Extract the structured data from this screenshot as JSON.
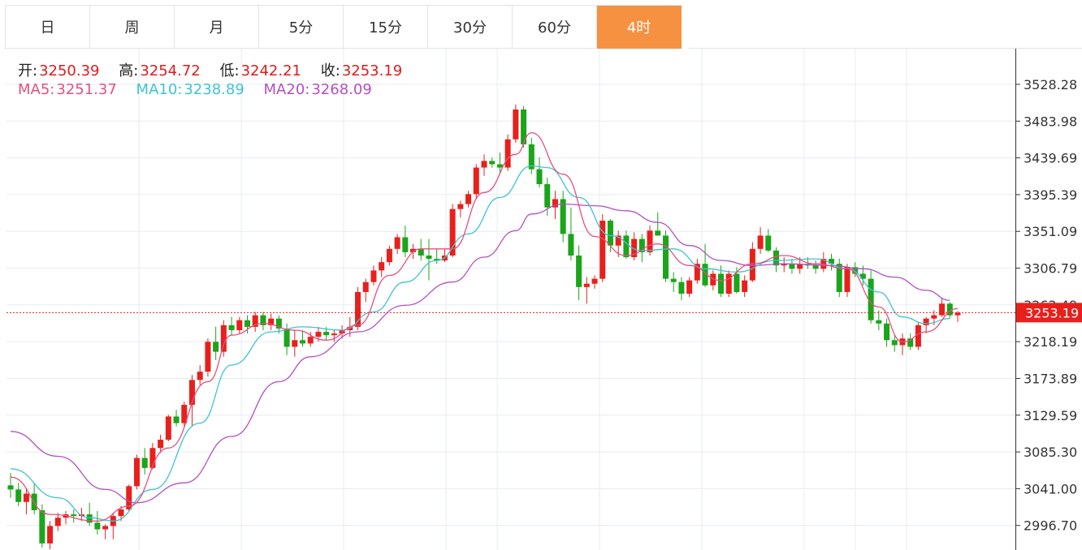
{
  "tabs": [
    {
      "label": "日"
    },
    {
      "label": "周"
    },
    {
      "label": "月"
    },
    {
      "label": "5分"
    },
    {
      "label": "15分"
    },
    {
      "label": "30分"
    },
    {
      "label": "60分"
    },
    {
      "label": "4时",
      "active": true
    }
  ],
  "ohlc_legend": {
    "open_label": "开:",
    "open": "3250.39",
    "high_label": "高:",
    "high": "3254.72",
    "low_label": "低:",
    "low": "3242.21",
    "close_label": "收:",
    "close": "3253.19"
  },
  "ma_legend": {
    "ma5_label": "MA5:",
    "ma5": "3251.37",
    "ma10_label": "MA10:",
    "ma10": "3238.89",
    "ma20_label": "MA20:",
    "ma20": "3268.09"
  },
  "colors": {
    "up": "#e8201c",
    "down": "#1aa51a",
    "ma5": "#e5507e",
    "ma10": "#3fc3d2",
    "ma20": "#b350c0",
    "active_tab": "#f59140",
    "grid": "#e6ecf2"
  },
  "chart_data": {
    "type": "candlestick",
    "y_ticks": [
      "3528.28",
      "3483.98",
      "3439.69",
      "3395.39",
      "3351.09",
      "3306.79",
      "3262.49",
      "3218.19",
      "3173.89",
      "3129.59",
      "3085.30",
      "3041.00",
      "2996.70"
    ],
    "last_price": "3253.19",
    "last_value": 3253.19,
    "ylim": [
      2966,
      3548
    ],
    "candles": [
      [
        3045,
        3060,
        3030,
        3040
      ],
      [
        3040,
        3048,
        3020,
        3025
      ],
      [
        3025,
        3040,
        3010,
        3035
      ],
      [
        3035,
        3048,
        3010,
        3015
      ],
      [
        3015,
        3022,
        2970,
        2975
      ],
      [
        2975,
        3002,
        2968,
        2996
      ],
      [
        2996,
        3012,
        2990,
        3006
      ],
      [
        3006,
        3014,
        2998,
        3010
      ],
      [
        3010,
        3016,
        3000,
        3008
      ],
      [
        3008,
        3018,
        3002,
        3010
      ],
      [
        3010,
        3024,
        2996,
        3000
      ],
      [
        3000,
        3014,
        2986,
        2992
      ],
      [
        2992,
        2998,
        2980,
        2996
      ],
      [
        2996,
        3012,
        2980,
        3008
      ],
      [
        3008,
        3020,
        3002,
        3016
      ],
      [
        3016,
        3046,
        3014,
        3044
      ],
      [
        3044,
        3082,
        3040,
        3078
      ],
      [
        3078,
        3090,
        3058,
        3066
      ],
      [
        3066,
        3096,
        3064,
        3090
      ],
      [
        3090,
        3106,
        3084,
        3100
      ],
      [
        3100,
        3130,
        3098,
        3128
      ],
      [
        3128,
        3136,
        3116,
        3120
      ],
      [
        3120,
        3146,
        3116,
        3142
      ],
      [
        3142,
        3178,
        3116,
        3172
      ],
      [
        3172,
        3190,
        3166,
        3182
      ],
      [
        3182,
        3222,
        3176,
        3218
      ],
      [
        3218,
        3236,
        3196,
        3206
      ],
      [
        3206,
        3244,
        3200,
        3238
      ],
      [
        3238,
        3248,
        3226,
        3232
      ],
      [
        3232,
        3248,
        3228,
        3244
      ],
      [
        3244,
        3250,
        3228,
        3236
      ],
      [
        3236,
        3254,
        3230,
        3250
      ],
      [
        3250,
        3254,
        3232,
        3238
      ],
      [
        3238,
        3252,
        3232,
        3246
      ],
      [
        3246,
        3250,
        3228,
        3234
      ],
      [
        3234,
        3240,
        3202,
        3212
      ],
      [
        3212,
        3232,
        3200,
        3220
      ],
      [
        3220,
        3232,
        3212,
        3216
      ],
      [
        3216,
        3230,
        3212,
        3224
      ],
      [
        3224,
        3236,
        3218,
        3230
      ],
      [
        3230,
        3236,
        3220,
        3226
      ],
      [
        3226,
        3232,
        3218,
        3228
      ],
      [
        3228,
        3238,
        3222,
        3232
      ],
      [
        3232,
        3248,
        3224,
        3236
      ],
      [
        3236,
        3284,
        3232,
        3278
      ],
      [
        3278,
        3294,
        3266,
        3290
      ],
      [
        3290,
        3310,
        3286,
        3304
      ],
      [
        3304,
        3320,
        3296,
        3314
      ],
      [
        3314,
        3334,
        3310,
        3330
      ],
      [
        3330,
        3348,
        3324,
        3344
      ],
      [
        3344,
        3358,
        3320,
        3326
      ],
      [
        3326,
        3336,
        3318,
        3330
      ],
      [
        3330,
        3342,
        3316,
        3322
      ],
      [
        3322,
        3342,
        3292,
        3318
      ],
      [
        3318,
        3330,
        3312,
        3316
      ],
      [
        3316,
        3330,
        3314,
        3322
      ],
      [
        3322,
        3384,
        3320,
        3378
      ],
      [
        3378,
        3388,
        3368,
        3384
      ],
      [
        3384,
        3400,
        3380,
        3396
      ],
      [
        3396,
        3432,
        3390,
        3428
      ],
      [
        3428,
        3444,
        3418,
        3436
      ],
      [
        3436,
        3440,
        3428,
        3432
      ],
      [
        3432,
        3446,
        3420,
        3428
      ],
      [
        3428,
        3468,
        3424,
        3462
      ],
      [
        3462,
        3504,
        3458,
        3498
      ],
      [
        3498,
        3502,
        3452,
        3456
      ],
      [
        3456,
        3464,
        3420,
        3426
      ],
      [
        3426,
        3440,
        3404,
        3408
      ],
      [
        3408,
        3416,
        3370,
        3380
      ],
      [
        3380,
        3400,
        3366,
        3390
      ],
      [
        3390,
        3400,
        3338,
        3348
      ],
      [
        3348,
        3380,
        3316,
        3322
      ],
      [
        3322,
        3334,
        3268,
        3284
      ],
      [
        3284,
        3296,
        3264,
        3288
      ],
      [
        3288,
        3298,
        3282,
        3294
      ],
      [
        3294,
        3372,
        3290,
        3364
      ],
      [
        3364,
        3366,
        3326,
        3334
      ],
      [
        3334,
        3352,
        3320,
        3346
      ],
      [
        3346,
        3352,
        3318,
        3320
      ],
      [
        3320,
        3350,
        3316,
        3342
      ],
      [
        3342,
        3348,
        3314,
        3326
      ],
      [
        3326,
        3358,
        3322,
        3352
      ],
      [
        3352,
        3374,
        3346,
        3346
      ],
      [
        3346,
        3352,
        3290,
        3294
      ],
      [
        3294,
        3302,
        3278,
        3290
      ],
      [
        3290,
        3296,
        3268,
        3276
      ],
      [
        3276,
        3296,
        3272,
        3292
      ],
      [
        3292,
        3318,
        3288,
        3312
      ],
      [
        3312,
        3336,
        3284,
        3286
      ],
      [
        3286,
        3304,
        3280,
        3300
      ],
      [
        3300,
        3310,
        3272,
        3276
      ],
      [
        3276,
        3304,
        3272,
        3300
      ],
      [
        3300,
        3308,
        3276,
        3278
      ],
      [
        3278,
        3298,
        3272,
        3292
      ],
      [
        3292,
        3338,
        3290,
        3330
      ],
      [
        3330,
        3356,
        3324,
        3346
      ],
      [
        3346,
        3354,
        3326,
        3328
      ],
      [
        3328,
        3332,
        3302,
        3310
      ],
      [
        3310,
        3320,
        3302,
        3312
      ],
      [
        3312,
        3318,
        3300,
        3306
      ],
      [
        3306,
        3320,
        3300,
        3312
      ],
      [
        3312,
        3320,
        3306,
        3310
      ],
      [
        3310,
        3316,
        3300,
        3306
      ],
      [
        3306,
        3326,
        3302,
        3318
      ],
      [
        3318,
        3324,
        3304,
        3312
      ],
      [
        3312,
        3318,
        3272,
        3278
      ],
      [
        3278,
        3312,
        3272,
        3308
      ],
      [
        3308,
        3314,
        3296,
        3300
      ],
      [
        3300,
        3310,
        3286,
        3294
      ],
      [
        3294,
        3304,
        3240,
        3244
      ],
      [
        3244,
        3256,
        3232,
        3240
      ],
      [
        3240,
        3246,
        3212,
        3220
      ],
      [
        3220,
        3226,
        3206,
        3214
      ],
      [
        3214,
        3228,
        3202,
        3222
      ],
      [
        3222,
        3228,
        3208,
        3212
      ],
      [
        3212,
        3242,
        3208,
        3238
      ],
      [
        3238,
        3248,
        3228,
        3246
      ],
      [
        3246,
        3256,
        3238,
        3250
      ],
      [
        3250,
        3270,
        3248,
        3264
      ],
      [
        3264,
        3266,
        3246,
        3250
      ],
      [
        3250,
        3255,
        3242,
        3253
      ]
    ],
    "ma5_anchors": [
      [
        0,
        3055
      ],
      [
        5,
        3010
      ],
      [
        11,
        3002
      ],
      [
        15,
        3020
      ],
      [
        20,
        3090
      ],
      [
        25,
        3170
      ],
      [
        28,
        3226
      ],
      [
        32,
        3240
      ],
      [
        36,
        3232
      ],
      [
        40,
        3220
      ],
      [
        44,
        3238
      ],
      [
        48,
        3298
      ],
      [
        52,
        3330
      ],
      [
        56,
        3330
      ],
      [
        60,
        3398
      ],
      [
        64,
        3444
      ],
      [
        66,
        3470
      ],
      [
        70,
        3420
      ],
      [
        74,
        3345
      ],
      [
        78,
        3322
      ],
      [
        82,
        3336
      ],
      [
        86,
        3310
      ],
      [
        90,
        3292
      ],
      [
        94,
        3312
      ],
      [
        98,
        3322
      ],
      [
        102,
        3312
      ],
      [
        106,
        3306
      ],
      [
        110,
        3260
      ],
      [
        113,
        3218
      ],
      [
        116,
        3230
      ],
      [
        120,
        3258
      ]
    ],
    "ma10_anchors": [
      [
        0,
        3065
      ],
      [
        6,
        3030
      ],
      [
        10,
        3006
      ],
      [
        13,
        3002
      ],
      [
        18,
        3040
      ],
      [
        24,
        3120
      ],
      [
        28,
        3190
      ],
      [
        33,
        3230
      ],
      [
        37,
        3236
      ],
      [
        42,
        3232
      ],
      [
        46,
        3254
      ],
      [
        50,
        3290
      ],
      [
        54,
        3316
      ],
      [
        58,
        3348
      ],
      [
        62,
        3392
      ],
      [
        66,
        3430
      ],
      [
        68,
        3428
      ],
      [
        72,
        3392
      ],
      [
        76,
        3346
      ],
      [
        80,
        3328
      ],
      [
        84,
        3330
      ],
      [
        88,
        3306
      ],
      [
        92,
        3302
      ],
      [
        97,
        3316
      ],
      [
        102,
        3318
      ],
      [
        106,
        3306
      ],
      [
        110,
        3278
      ],
      [
        113,
        3248
      ],
      [
        116,
        3240
      ],
      [
        119,
        3246
      ]
    ],
    "ma20_anchors": [
      [
        0,
        3110
      ],
      [
        6,
        3080
      ],
      [
        12,
        3040
      ],
      [
        16,
        3024
      ],
      [
        22,
        3048
      ],
      [
        28,
        3104
      ],
      [
        34,
        3170
      ],
      [
        38,
        3200
      ],
      [
        44,
        3230
      ],
      [
        50,
        3262
      ],
      [
        56,
        3290
      ],
      [
        60,
        3320
      ],
      [
        64,
        3352
      ],
      [
        66,
        3372
      ],
      [
        70,
        3384
      ],
      [
        74,
        3382
      ],
      [
        78,
        3376
      ],
      [
        82,
        3362
      ],
      [
        86,
        3334
      ],
      [
        90,
        3316
      ],
      [
        94,
        3310
      ],
      [
        98,
        3312
      ],
      [
        104,
        3310
      ],
      [
        108,
        3306
      ],
      [
        112,
        3296
      ],
      [
        116,
        3280
      ],
      [
        119,
        3268
      ]
    ]
  }
}
